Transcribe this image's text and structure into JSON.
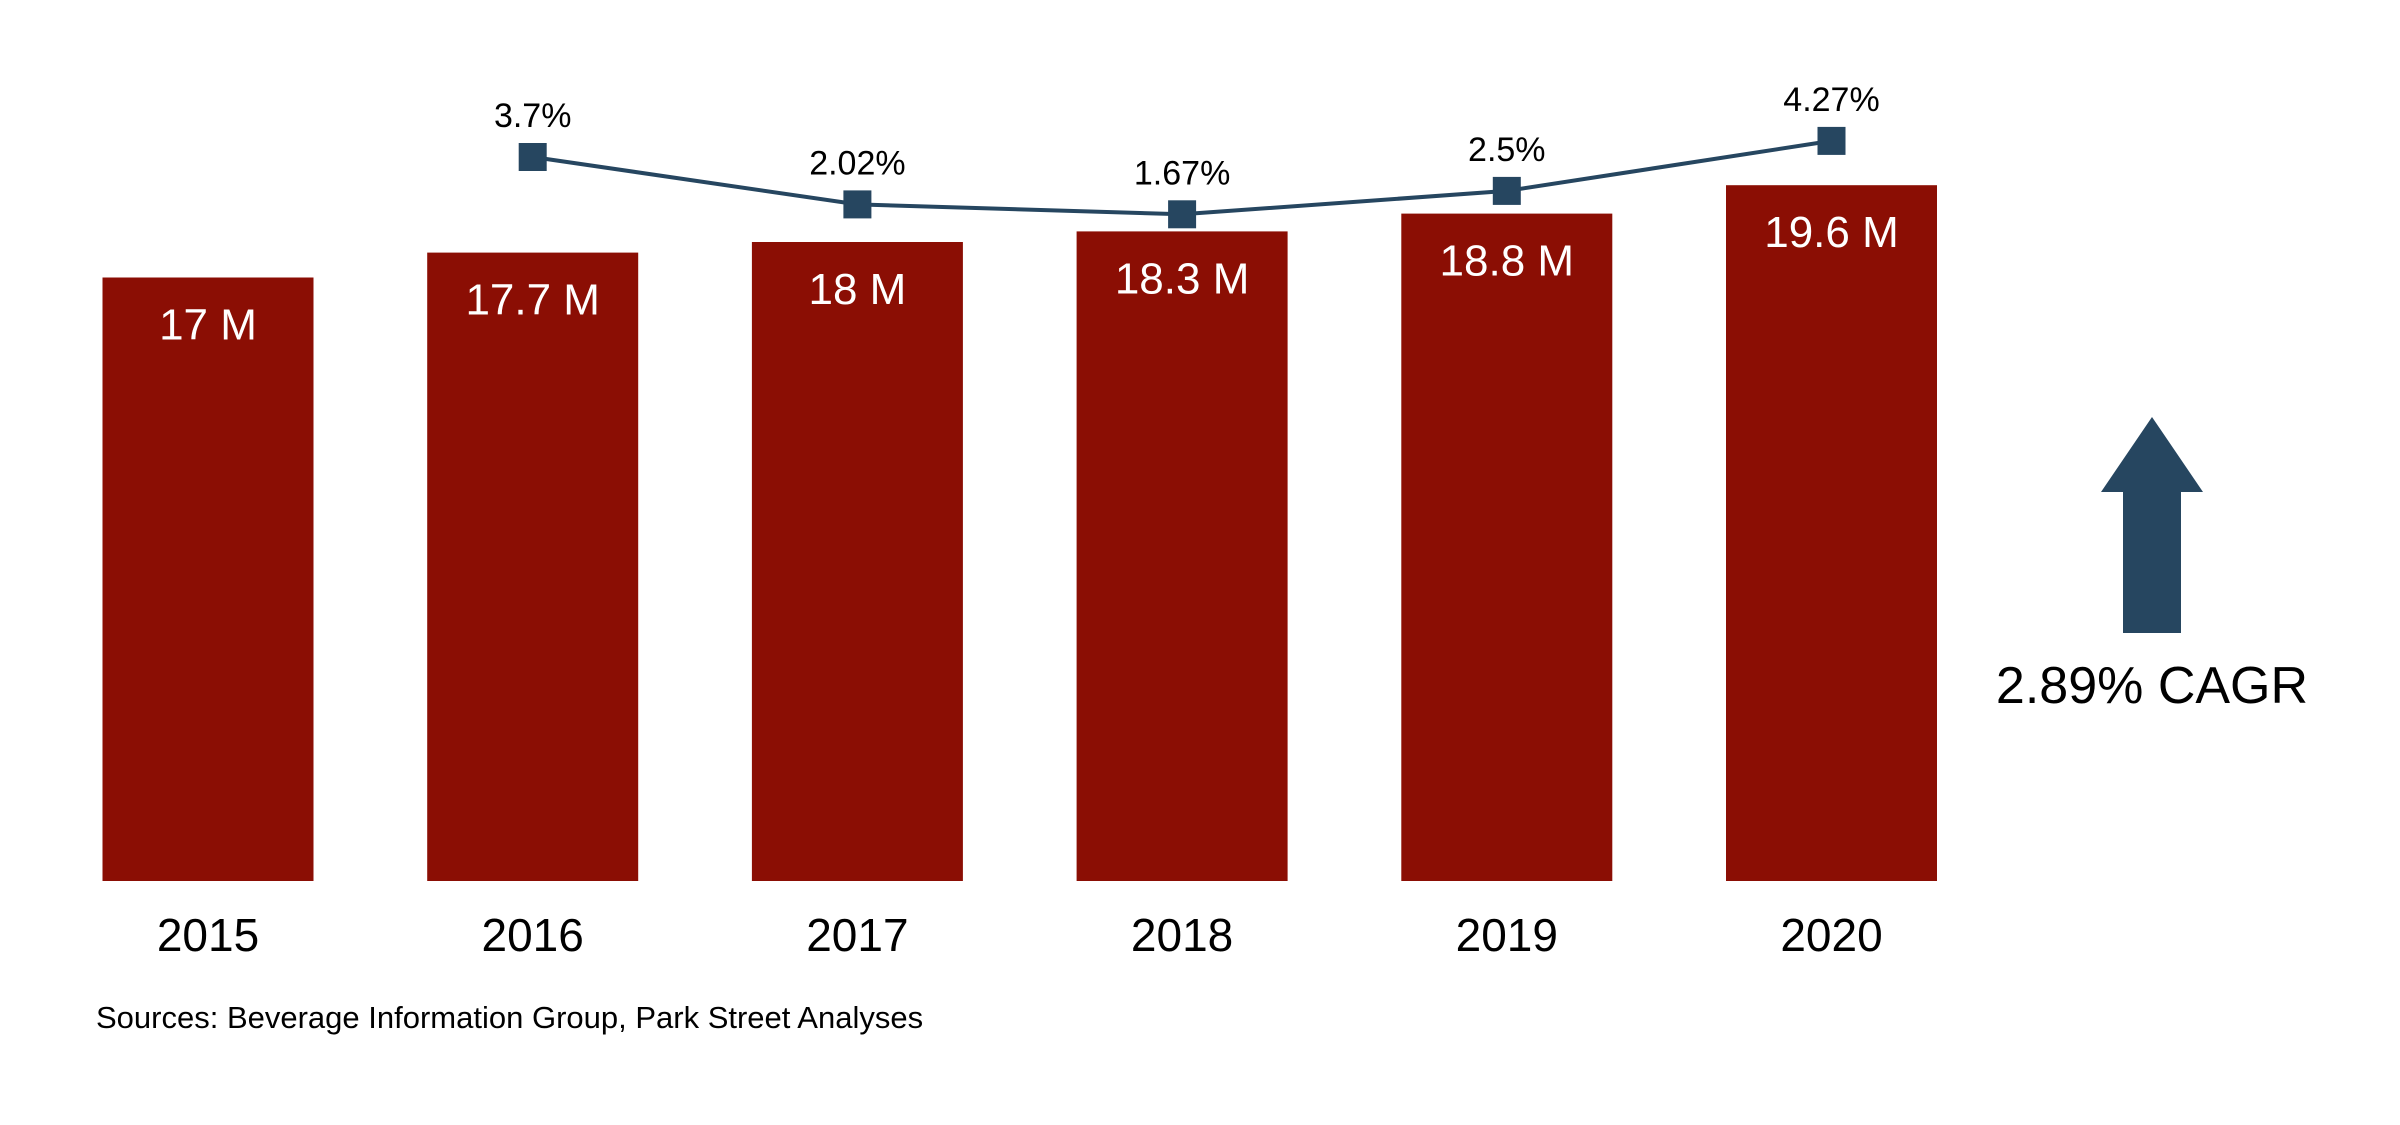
{
  "chart_data": {
    "type": "bar",
    "categories": [
      "2015",
      "2016",
      "2017",
      "2018",
      "2019",
      "2020"
    ],
    "series": [
      {
        "values": [
          17,
          17.7,
          18,
          18.3,
          18.8,
          19.6
        ],
        "data_labels": [
          "17 M",
          "17.7 M",
          "18 M",
          "18.3 M",
          "18.8 M",
          "19.6 M"
        ]
      },
      {
        "type": "line",
        "values": [
          null,
          3.7,
          2.02,
          1.67,
          2.5,
          4.27
        ],
        "data_labels": [
          "",
          "3.7%",
          "2.02%",
          "1.67%",
          "2.5%",
          "4.27%"
        ]
      }
    ],
    "annotation": "2.89% CAGR",
    "colors": {
      "bar": "#8b0e04",
      "line": "#264660",
      "arrow": "#264660"
    },
    "legend": "none",
    "grid": false
  },
  "source": "Sources: Beverage Information Group, Park Street Analyses"
}
